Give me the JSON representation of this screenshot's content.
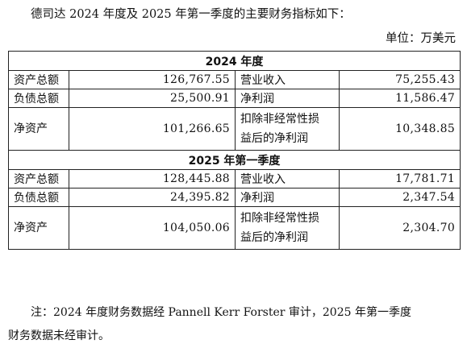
{
  "intro": "德司达 2024 年度及 2025 年第一季度的主要财务指标如下：",
  "unit": "单位：万美元",
  "sections": [
    {
      "title": "2024 年度",
      "rows": [
        {
          "l1": "资产总额",
          "v1": "126,767.55",
          "l2": "营业收入",
          "v2": "75,255.43"
        },
        {
          "l1": "负债总额",
          "v1": "25,500.91",
          "l2": "净利润",
          "v2": "11,586.47"
        },
        {
          "l1": "净资产",
          "v1": "101,266.65",
          "l2a": "扣除非经常性损",
          "l2b": "益后的净利润",
          "v2": "10,348.85"
        }
      ]
    },
    {
      "title": "2025 年第一季度",
      "rows": [
        {
          "l1": "资产总额",
          "v1": "128,445.88",
          "l2": "营业收入",
          "v2": "17,781.71"
        },
        {
          "l1": "负债总额",
          "v1": "24,395.82",
          "l2": "净利润",
          "v2": "2,347.54"
        },
        {
          "l1": "净资产",
          "v1": "104,050.06",
          "l2a": "扣除非经常性损",
          "l2b": "益后的净利润",
          "v2": "2,304.70"
        }
      ]
    }
  ],
  "note_line1": "注：2024 年度财务数据经 Pannell Kerr Forster 审计，2025 年第一季度",
  "note_line2": "财务数据未经审计。"
}
